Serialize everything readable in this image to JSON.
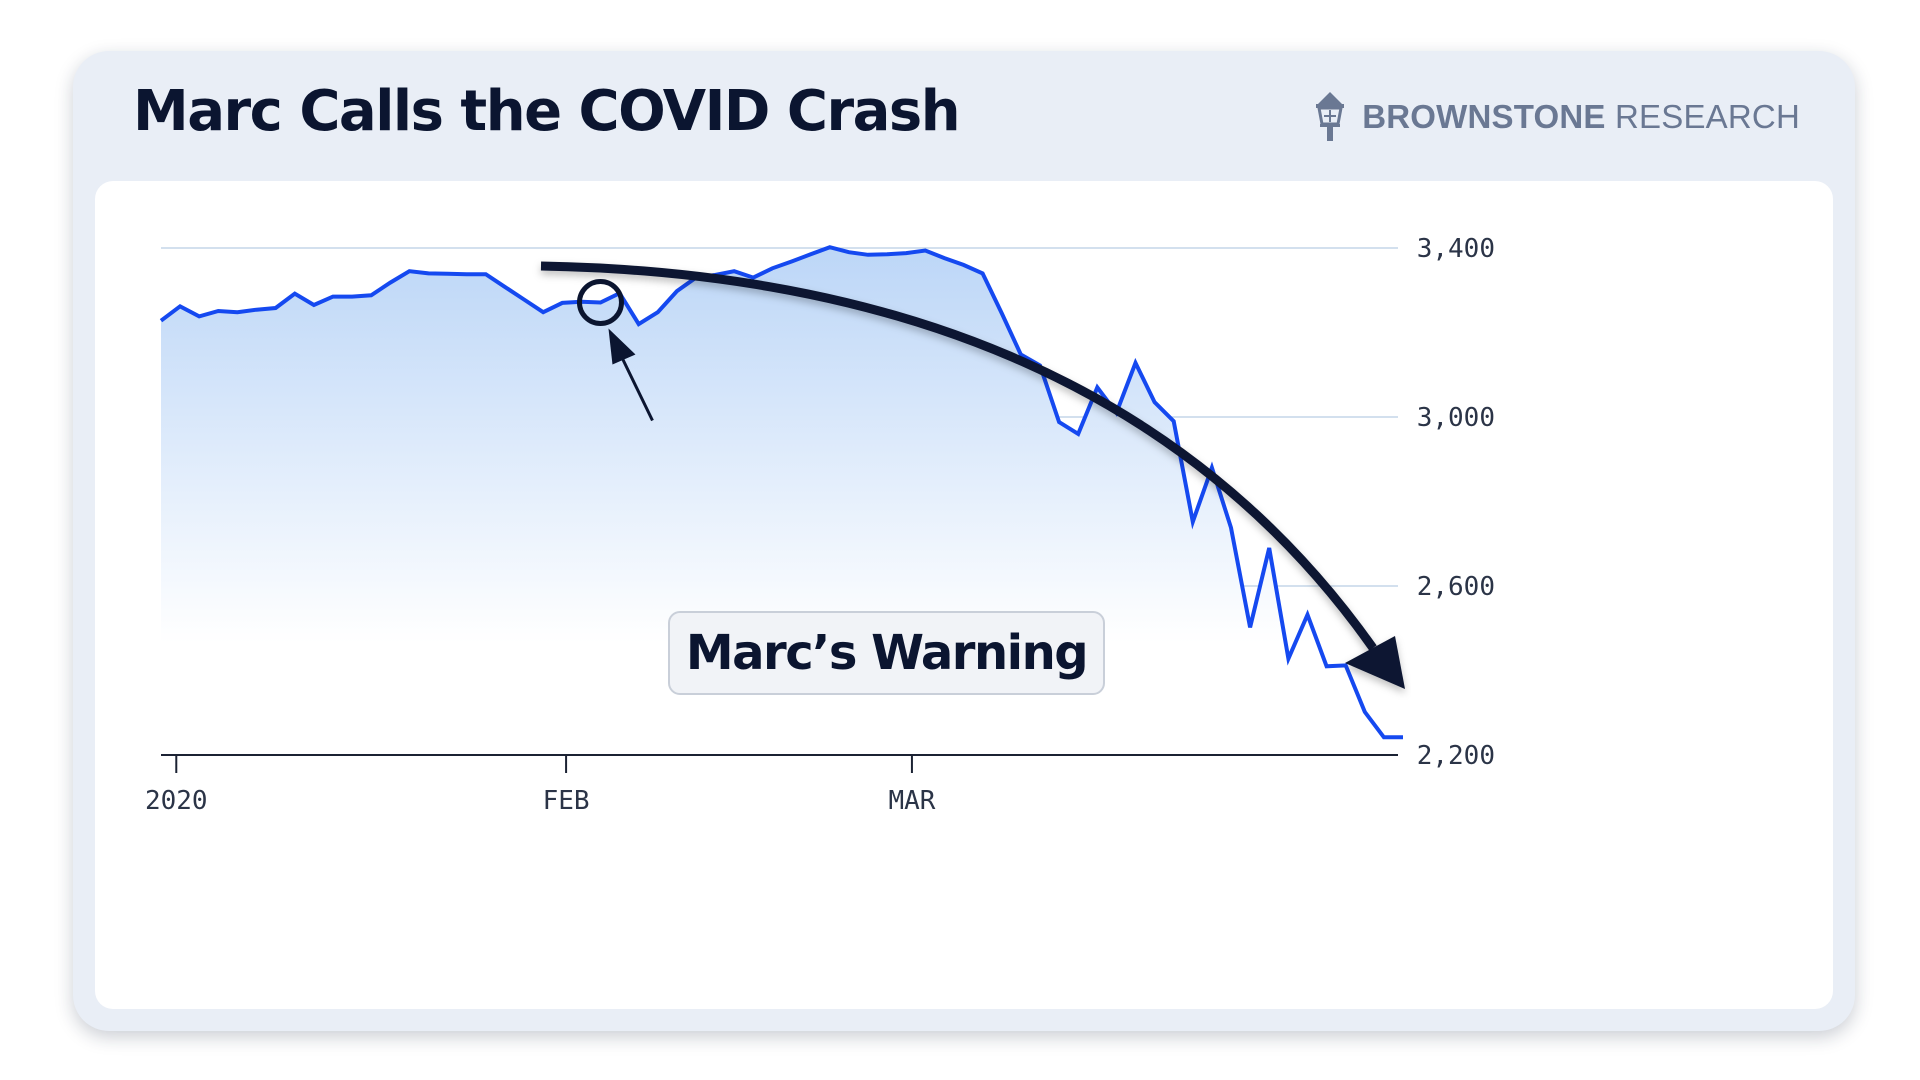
{
  "title": "Marc Calls the COVID Crash",
  "brand": {
    "name_bold": "BROWNSTONE",
    "name_regular": "RESEARCH",
    "icon": "lamppost-icon"
  },
  "annotation": {
    "label": "Marc’s Warning"
  },
  "colors": {
    "line": "#1549f0",
    "area_top": "#bcd6f7",
    "arrow": "#0b1530",
    "grid": "#b9cde3",
    "axis": "#1b2233"
  },
  "chart_data": {
    "type": "area",
    "title": "Marc Calls the COVID Crash",
    "xlabel": "",
    "ylabel": "",
    "y_ticks": [
      2200,
      2600,
      3000,
      3400
    ],
    "y_tick_labels": [
      "2,200",
      "2,600",
      "3,000",
      "3,400"
    ],
    "x_ticks": [
      "2020",
      "FEB",
      "MAR"
    ],
    "ylim": [
      2200,
      3480
    ],
    "grid": true,
    "series": [
      {
        "values": [
          3228,
          3262,
          3238,
          3251,
          3248,
          3254,
          3258,
          3292,
          3265,
          3285,
          3285,
          3288,
          3318,
          3345,
          3340,
          3339,
          3338,
          3338,
          3308,
          3278,
          3248,
          3270,
          3273,
          3271,
          3293,
          3220,
          3248,
          3298,
          3330,
          3336,
          3345,
          3330,
          3352,
          3368,
          3385,
          3402,
          3390,
          3384,
          3385,
          3388,
          3394,
          3376,
          3360,
          3340,
          3246,
          3148,
          3122,
          2988,
          2960,
          3070,
          3010,
          3128,
          3035,
          2990,
          2752,
          2880,
          2738,
          2502,
          2690,
          2428,
          2532,
          2410,
          2412,
          2302,
          2242,
          2242
        ]
      }
    ],
    "annotations": [
      {
        "label": "Marc’s Warning",
        "index": 23,
        "value": 3271
      }
    ]
  }
}
